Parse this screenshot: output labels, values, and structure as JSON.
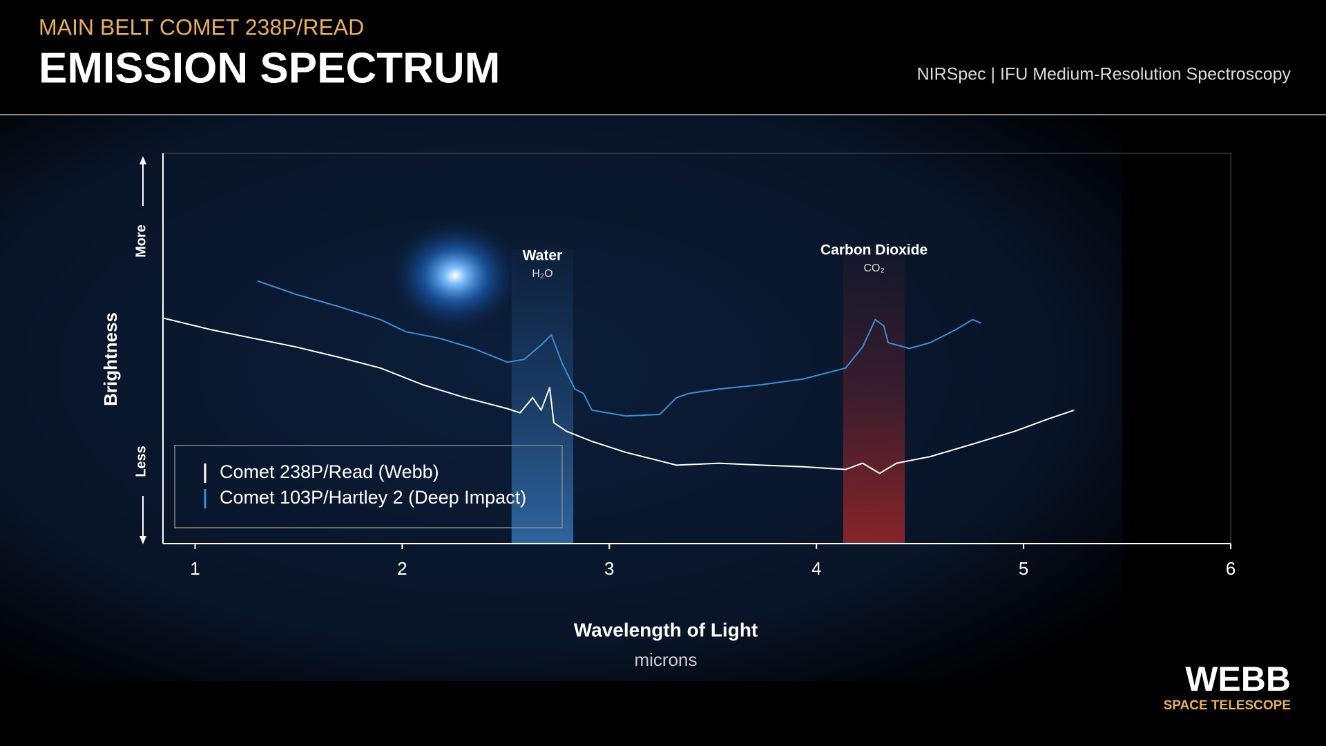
{
  "chart_data": {
    "type": "line",
    "subtitle": "MAIN BELT COMET 238P/READ",
    "title": "EMISSION SPECTRUM",
    "instrument": "NIRSpec | IFU Medium-Resolution Spectroscopy",
    "x_label": "Wavelength of Light",
    "x_unit": "microns",
    "y_label": "Brightness",
    "y_high_label": "More",
    "y_low_label": "Less",
    "xlim": [
      0.845,
      6
    ],
    "xticks": [
      1,
      2,
      3,
      4,
      5,
      6
    ],
    "ylim": [
      0,
      100
    ],
    "legend": "lower left",
    "series": [
      {
        "name": "Comet 238P/Read (Webb)",
        "color": "#ffffff",
        "x": [
          0.845,
          1.078,
          1.282,
          1.486,
          1.69,
          1.895,
          2.099,
          2.303,
          2.507,
          2.569,
          2.63,
          2.671,
          2.712,
          2.732,
          2.793,
          2.916,
          3.079,
          3.243,
          3.324,
          3.529,
          3.733,
          3.937,
          4.141,
          4.223,
          4.305,
          4.386,
          4.55,
          4.754,
          4.958,
          5.122,
          5.244
        ],
        "values": [
          57.8,
          54.8,
          52.6,
          50.4,
          47.8,
          45.0,
          40.7,
          37.4,
          34.6,
          33.5,
          37.4,
          34.2,
          40.0,
          31.0,
          28.8,
          26.2,
          23.4,
          21.2,
          20.1,
          20.6,
          20.1,
          19.7,
          19.0,
          20.6,
          18.0,
          20.6,
          22.3,
          25.5,
          28.8,
          32.0,
          34.2
        ]
      },
      {
        "name": "Comet 103P/Hartley 2 (Deep Impact)",
        "color": "#3a8fd9",
        "x": [
          1.302,
          1.486,
          1.69,
          1.895,
          2.017,
          2.181,
          2.344,
          2.507,
          2.589,
          2.671,
          2.72,
          2.773,
          2.834,
          2.875,
          2.916,
          3.079,
          3.243,
          3.324,
          3.386,
          3.529,
          3.733,
          3.937,
          4.141,
          4.223,
          4.284,
          4.325,
          4.346,
          4.448,
          4.55,
          4.672,
          4.754,
          4.795
        ],
        "values": [
          67.3,
          63.9,
          60.8,
          57.4,
          54.3,
          52.6,
          50.0,
          46.5,
          47.2,
          50.9,
          53.5,
          46.1,
          39.6,
          38.5,
          34.2,
          32.7,
          33.1,
          37.4,
          38.5,
          39.6,
          40.7,
          42.2,
          45.0,
          50.4,
          57.4,
          55.8,
          51.5,
          50.0,
          51.5,
          54.8,
          57.4,
          56.5
        ]
      }
    ],
    "bands": [
      {
        "label": "Water",
        "sublabel": "H₂O",
        "xmin": 2.528,
        "xmax": 2.826,
        "color": "#3a7fc4"
      },
      {
        "label": "Carbon Dioxide",
        "sublabel": "CO₂",
        "xmin": 4.129,
        "xmax": 4.427,
        "color": "#b02a2a"
      }
    ]
  },
  "footer": {
    "logo": "WEBB",
    "logo_sub": "SPACE TELESCOPE"
  }
}
